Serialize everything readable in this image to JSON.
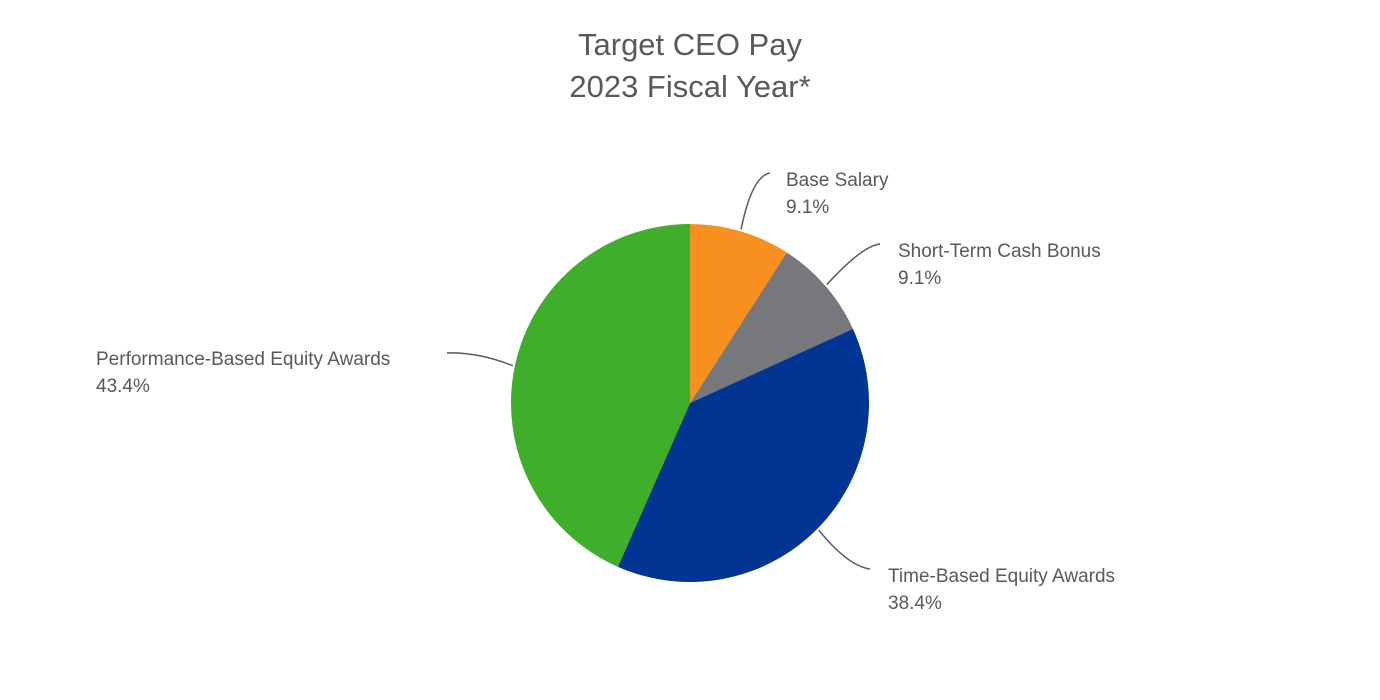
{
  "chart_data": {
    "type": "pie",
    "title": [
      "Target CEO Pay",
      "2023 Fiscal Year*"
    ],
    "categories": [
      "Base Salary",
      "Short-Term Cash Bonus",
      "Time-Based Equity Awards",
      "Performance-Based Equity Awards"
    ],
    "values": [
      9.1,
      9.1,
      38.4,
      43.4
    ],
    "value_labels": [
      "9.1%",
      "9.1%",
      "38.4%",
      "43.4%"
    ],
    "colors": [
      "#F7901E",
      "#77787B",
      "#003594",
      "#3FAE2A"
    ],
    "start_angle_deg": 0,
    "direction": "clockwise",
    "legend": "none",
    "label_color": "#595959",
    "leader_color": "#595959"
  }
}
